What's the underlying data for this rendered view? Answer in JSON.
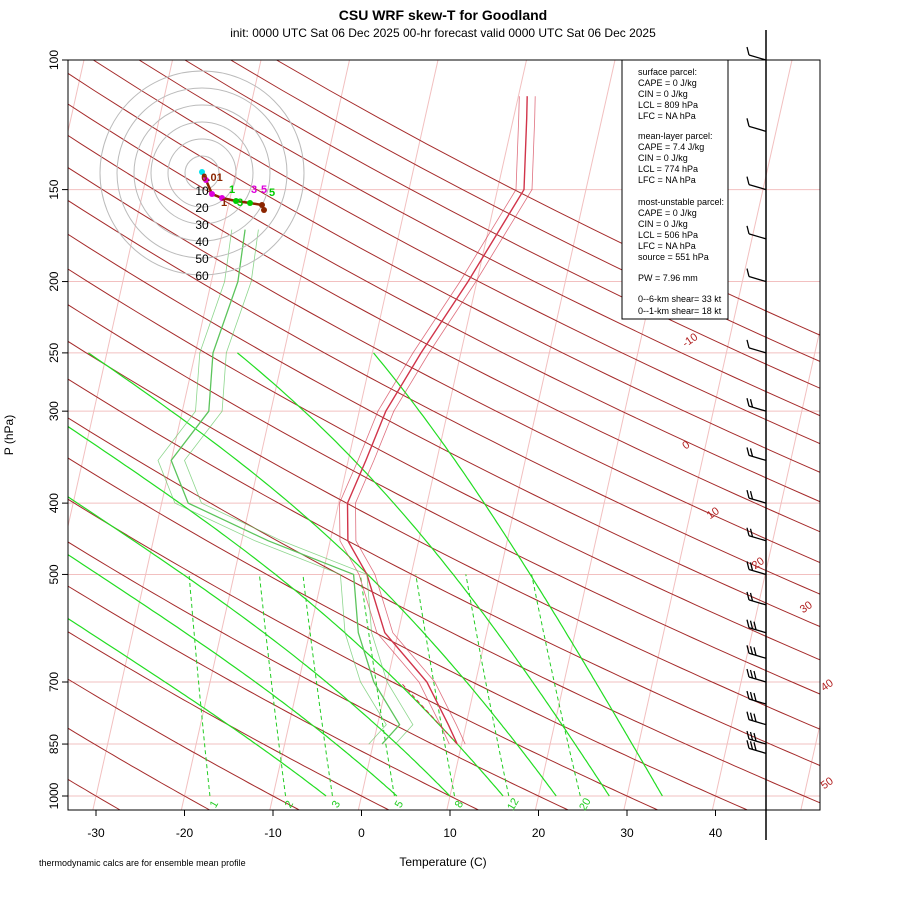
{
  "chart_data": {
    "type": "skew-t",
    "title": "CSU WRF skew-T for Goodland",
    "subtitle": "init: 0000 UTC Sat 06 Dec 2025     00-hr forecast valid 0000 UTC Sat 06 Dec 2025",
    "xlabel": "Temperature (C)",
    "ylabel": "P (hPa)",
    "footer": "thermodynamic calcs are for ensemble mean profile",
    "pressure_ticks": [
      100,
      150,
      200,
      250,
      300,
      400,
      500,
      700,
      850,
      1000
    ],
    "temperature_ticks": [
      -30,
      -20,
      -10,
      0,
      10,
      20,
      30,
      40
    ],
    "xlim": [
      -33,
      45
    ],
    "ylim": [
      1000,
      100
    ],
    "dry_adiabat_labels": [
      "-10",
      "0",
      "10",
      "20",
      "30",
      "40",
      "50"
    ],
    "mixing_ratio_labels": [
      "1",
      "2",
      "3",
      "5",
      "8",
      "12",
      "20"
    ],
    "temperature_profile": [
      {
        "p": 850,
        "t": 9.5
      },
      {
        "p": 800,
        "t": 8.0
      },
      {
        "p": 700,
        "t": 4.5
      },
      {
        "p": 600,
        "t": -1.5
      },
      {
        "p": 500,
        "t": -5.0
      },
      {
        "p": 450,
        "t": -8.0
      },
      {
        "p": 400,
        "t": -9.0
      },
      {
        "p": 350,
        "t": -8.0
      },
      {
        "p": 300,
        "t": -7.0
      },
      {
        "p": 250,
        "t": -4.5
      },
      {
        "p": 200,
        "t": -1.0
      },
      {
        "p": 150,
        "t": 3.0
      },
      {
        "p": 120,
        "t": 1.5
      },
      {
        "p": 112,
        "t": 1.0
      }
    ],
    "dewpoint_profile": [
      {
        "p": 850,
        "t": 1.0
      },
      {
        "p": 800,
        "t": 2.5
      },
      {
        "p": 700,
        "t": -1.5
      },
      {
        "p": 600,
        "t": -4.5
      },
      {
        "p": 500,
        "t": -6.5
      },
      {
        "p": 450,
        "t": -17.0
      },
      {
        "p": 400,
        "t": -27.0
      },
      {
        "p": 350,
        "t": -30.0
      },
      {
        "p": 300,
        "t": -27.0
      },
      {
        "p": 250,
        "t": -28.0
      },
      {
        "p": 200,
        "t": -27.0
      },
      {
        "p": 170,
        "t": -27.5
      }
    ],
    "surface_parcel": {
      "label": "surface parcel:",
      "cape": "CAPE = 0 J/kg",
      "cin": "CIN = 0 J/kg",
      "lcl": "LCL = 809 hPa",
      "lfc": "LFC = NA hPa"
    },
    "mean_layer_parcel": {
      "label": "mean-layer parcel:",
      "cape": "CAPE = 7.4 J/kg",
      "cin": "CIN = 0 J/kg",
      "lcl": "LCL = 774 hPa",
      "lfc": "LFC = NA hPa"
    },
    "most_unstable_parcel": {
      "label": "most-unstable parcel:",
      "cape": "CAPE = 0 J/kg",
      "cin": "CIN = 0 J/kg",
      "lcl": "LCL = 506 hPa",
      "lfc": "LFC = NA hPa",
      "source": "source = 551 hPa"
    },
    "pw": "PW =  7.96 mm",
    "shear_0_6": "0--6-km shear= 33 kt",
    "shear_0_1": "0--1-km shear= 18 kt",
    "hodograph": {
      "ring_labels": [
        "10",
        "20",
        "30",
        "40",
        "50",
        "60"
      ],
      "point_labels": [
        "0.01",
        "1",
        "3",
        "5",
        "5",
        "3",
        "1"
      ]
    },
    "wind_barb_levels": [
      100,
      125,
      150,
      175,
      200,
      250,
      300,
      350,
      400,
      450,
      500,
      550,
      600,
      650,
      700,
      750,
      800,
      850,
      875
    ],
    "colors": {
      "temperature": "#d1344a",
      "dewpoint": "#5cc45c",
      "isotherm": "#f2c0c0",
      "isobar": "#f2c0c0",
      "dry_adiabat": "#a52a2a",
      "moist_adiabat": "#22dd22",
      "mixing_ratio": "#22cc22",
      "hodograph_ring": "#bbbbbb",
      "hodo_cyan": "#00e5ee",
      "hodo_magenta": "#dd00dd",
      "hodo_green": "#00cc00",
      "hodo_brown": "#8b2500"
    }
  }
}
